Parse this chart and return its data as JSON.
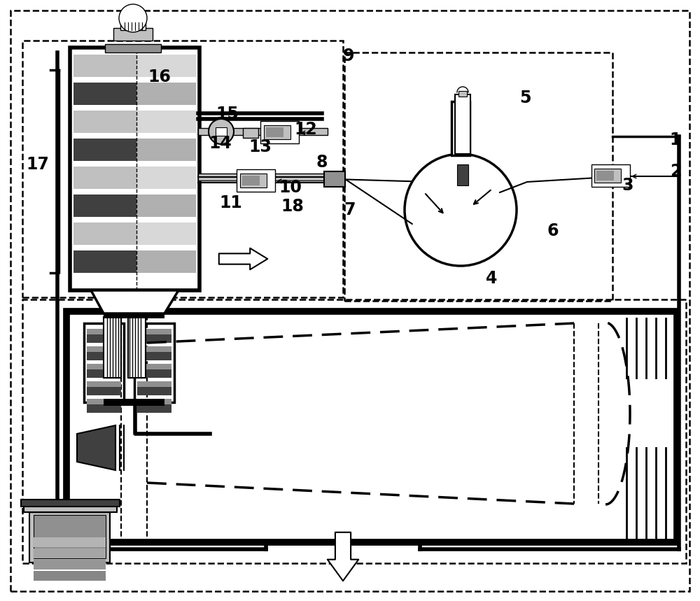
{
  "bg_color": "#ffffff",
  "black": "#000000",
  "gray": "#808080",
  "lgray": "#c0c0c0",
  "dgray": "#404040",
  "mgray": "#909090",
  "fig_width": 10.0,
  "fig_height": 8.59
}
